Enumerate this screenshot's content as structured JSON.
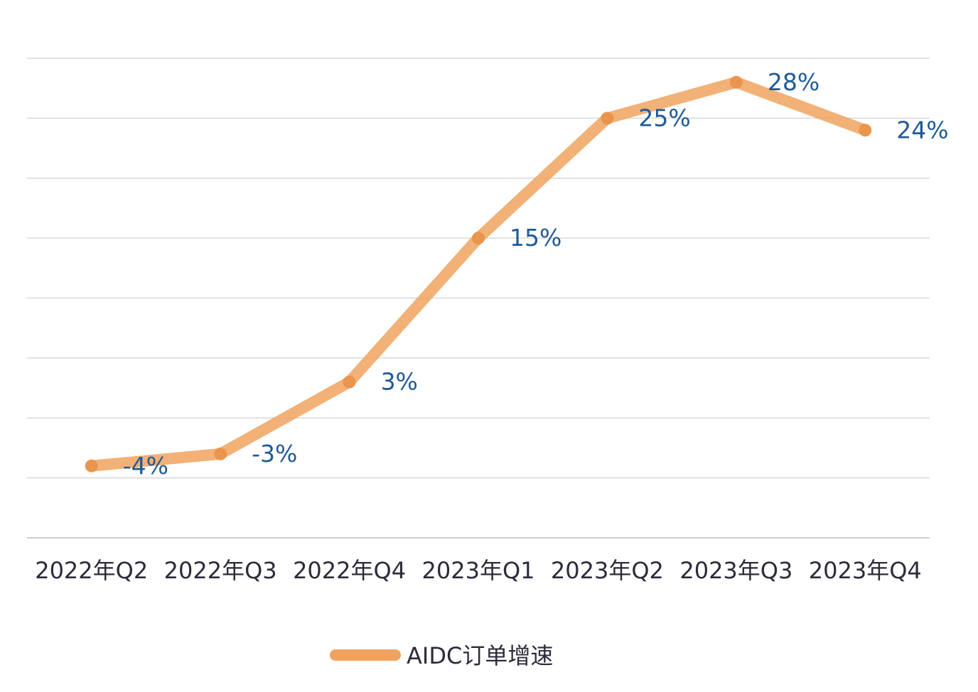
{
  "chart_data": {
    "type": "line",
    "title": "",
    "xlabel": "",
    "ylabel": "",
    "categories": [
      "2022年Q2",
      "2022年Q3",
      "2022年Q4",
      "2023年Q1",
      "2023年Q2",
      "2023年Q3",
      "2023年Q4"
    ],
    "series": [
      {
        "name": "AIDC订单增速",
        "values": [
          -4,
          -3,
          3,
          15,
          25,
          28,
          24
        ],
        "labels": [
          "-4%",
          "-3%",
          "3%",
          "15%",
          "25%",
          "28%",
          "24%"
        ],
        "color": "#f0a35e"
      }
    ],
    "ylim": [
      -10,
      30
    ],
    "y_axis_labels_shown": false,
    "grid": true,
    "legend": "bottom-center",
    "data_label_color": "#1f5a96",
    "gridline_color": "#d9d9d9"
  }
}
